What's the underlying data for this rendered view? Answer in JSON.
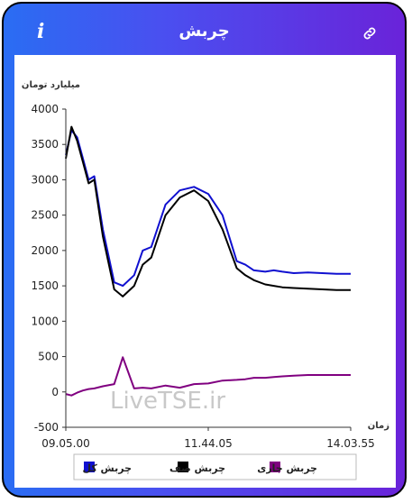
{
  "header": {
    "title": "چربش",
    "info_icon": "i",
    "link_icon_name": "link-icon"
  },
  "watermark": "LiveTSE.ir",
  "chart_data": {
    "type": "line",
    "ylabel": "میلیارد تومان",
    "xlabel": "زمان",
    "ylim": [
      -500,
      4000
    ],
    "yticks": [
      -500,
      0,
      500,
      1000,
      1500,
      2000,
      2500,
      3000,
      3500,
      4000
    ],
    "xticks": [
      "09.05.00",
      "11.44.05",
      "14.03.55"
    ],
    "x": [
      0,
      2,
      4,
      6,
      8,
      10,
      13,
      17,
      20,
      24,
      27,
      30,
      35,
      40,
      45,
      50,
      55,
      60,
      63,
      66,
      70,
      73,
      76,
      80,
      85,
      90,
      95,
      100
    ],
    "series": [
      {
        "name": "چربش کل",
        "color": "#1010d0",
        "values": [
          3350,
          3700,
          3600,
          3300,
          3000,
          3050,
          2300,
          1550,
          1500,
          1650,
          2000,
          2050,
          2650,
          2850,
          2900,
          2800,
          2500,
          1850,
          1800,
          1720,
          1700,
          1720,
          1700,
          1680,
          1690,
          1680,
          1670,
          1670
        ]
      },
      {
        "name": "چربش صف",
        "color": "#000000",
        "values": [
          3300,
          3750,
          3550,
          3250,
          2950,
          3000,
          2200,
          1450,
          1350,
          1500,
          1800,
          1900,
          2500,
          2750,
          2850,
          2700,
          2300,
          1750,
          1650,
          1580,
          1520,
          1500,
          1480,
          1470,
          1460,
          1450,
          1440,
          1440
        ]
      },
      {
        "name": "چربش جاری",
        "color": "#800080",
        "values": [
          -30,
          -50,
          -10,
          20,
          40,
          50,
          80,
          110,
          490,
          50,
          60,
          50,
          90,
          60,
          110,
          120,
          160,
          170,
          180,
          200,
          200,
          210,
          220,
          230,
          240,
          240,
          240,
          240
        ]
      }
    ],
    "legend_position": "bottom"
  }
}
